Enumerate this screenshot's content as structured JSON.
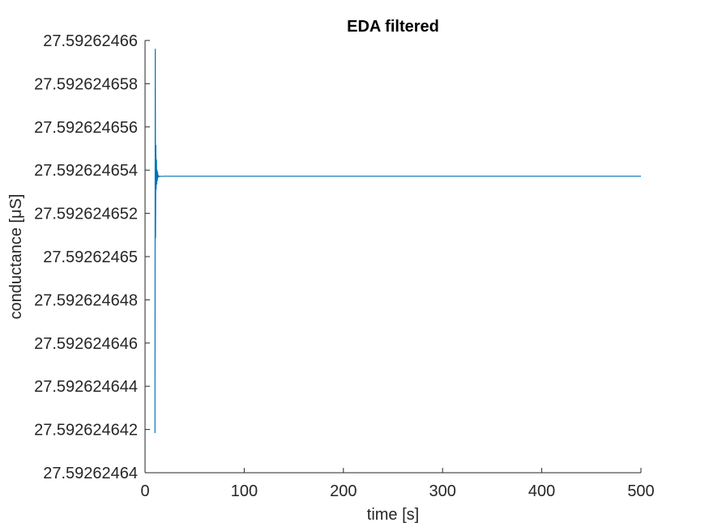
{
  "chart_data": {
    "type": "line",
    "title": "EDA filtered",
    "xlabel": "time [s]",
    "ylabel": "conductance [μS]",
    "xlim": [
      0,
      500
    ],
    "ylim": [
      27.59262464,
      27.59262466
    ],
    "x_ticks": [
      {
        "value": 0,
        "label": "0"
      },
      {
        "value": 100,
        "label": "100"
      },
      {
        "value": 200,
        "label": "200"
      },
      {
        "value": 300,
        "label": "300"
      },
      {
        "value": 400,
        "label": "400"
      },
      {
        "value": 500,
        "label": "500"
      }
    ],
    "y_ticks": [
      {
        "value": 27.59262464,
        "label": "27.59262464"
      },
      {
        "value": 27.592624642,
        "label": "27.592624642"
      },
      {
        "value": 27.592624644,
        "label": "27.592624644"
      },
      {
        "value": 27.592624646,
        "label": "27.592624646"
      },
      {
        "value": 27.592624648,
        "label": "27.592624648"
      },
      {
        "value": 27.59262465,
        "label": "27.59262465"
      },
      {
        "value": 27.592624652,
        "label": "27.592624652"
      },
      {
        "value": 27.592624654,
        "label": "27.592624654"
      },
      {
        "value": 27.592624656,
        "label": "27.592624656"
      },
      {
        "value": 27.592624658,
        "label": "27.592624658"
      },
      {
        "value": 27.59262466,
        "label": "27.59262466"
      }
    ],
    "grid": false,
    "series": [
      {
        "name": "EDA filtered",
        "color": "#0072bd",
        "x": [
          10.0,
          10.3,
          10.6,
          10.9,
          11.2,
          11.5,
          11.8,
          12.1,
          12.4,
          12.7,
          13.0,
          13.5,
          14.0,
          15.0,
          17.0,
          20.0,
          50.0,
          100.0,
          200.0,
          300.0,
          400.0,
          500.0
        ],
        "y": [
          27.592624641835,
          27.5926246596,
          27.59262465088,
          27.59262465515,
          27.59262465312,
          27.59262465448,
          27.59262465335,
          27.592624654,
          27.59262465352,
          27.5926246539,
          27.59262465365,
          27.59262465375,
          27.5926246537,
          27.59262465372,
          27.59262465371,
          27.59262465372,
          27.59262465372,
          27.59262465372,
          27.59262465372,
          27.59262465372,
          27.59262465372,
          27.59262465372
        ]
      }
    ]
  }
}
